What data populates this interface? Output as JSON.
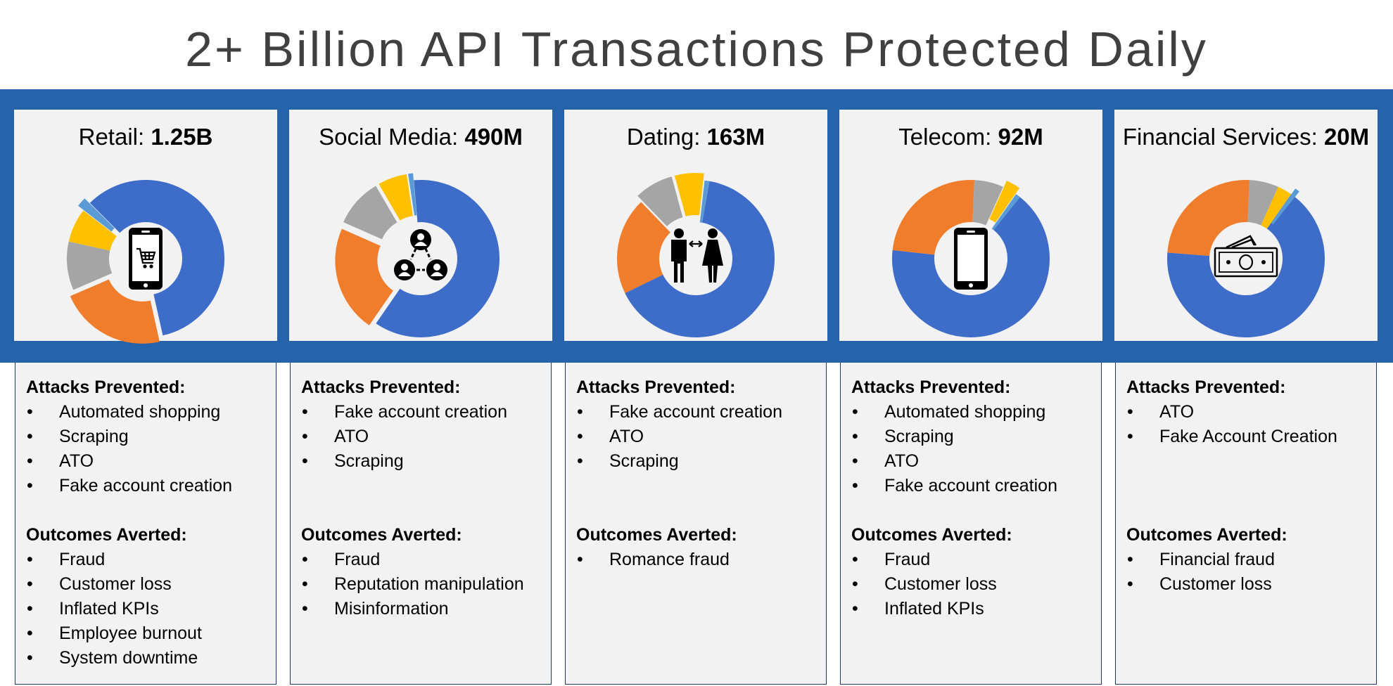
{
  "title": "2+ Billion API Transactions Protected Daily",
  "colors": {
    "band": "#2563ab",
    "segments": [
      "#3d6cc9",
      "#f07d2c",
      "#a5a5a5",
      "#ffc000",
      "#5b9bd5"
    ]
  },
  "labels": {
    "attacks_title": "Attacks Prevented:",
    "outcomes_title": "Outcomes Averted:"
  },
  "chart_data": [
    {
      "type": "pie",
      "sector": "Retail",
      "total": "1.25B",
      "icon": "shopping-cart-phone-icon",
      "slices": [
        0.59,
        0.22,
        0.1,
        0.07,
        0.02
      ],
      "exploded": [
        0,
        1,
        0,
        0,
        1
      ],
      "attacks": [
        "Automated shopping",
        "Scraping",
        "ATO",
        "Fake account creation"
      ],
      "outcomes": [
        "Fraud",
        "Customer loss",
        "Inflated KPIs",
        "Employee burnout",
        "System downtime"
      ]
    },
    {
      "type": "pie",
      "sector": "Social Media",
      "total": "490M",
      "icon": "social-network-icon",
      "slices": [
        0.61,
        0.22,
        0.1,
        0.06,
        0.01
      ],
      "exploded": [
        0,
        1,
        1,
        1,
        1
      ],
      "attacks": [
        "Fake account creation",
        "ATO",
        "Scraping"
      ],
      "outcomes": [
        "Fraud",
        "Reputation manipulation",
        "Misinformation"
      ]
    },
    {
      "type": "pie",
      "sector": "Dating",
      "total": "163M",
      "icon": "couple-icon",
      "slices": [
        0.65,
        0.2,
        0.08,
        0.06,
        0.01
      ],
      "exploded": [
        0,
        0,
        1,
        1,
        0
      ],
      "attacks": [
        "Fake account creation",
        "ATO",
        "Scraping"
      ],
      "outcomes": [
        "Romance fraud"
      ]
    },
    {
      "type": "pie",
      "sector": "Telecom",
      "total": "92M",
      "icon": "mobile-phone-icon",
      "slices": [
        0.67,
        0.24,
        0.06,
        0.03,
        0.01
      ],
      "exploded": [
        0,
        0,
        0,
        1,
        0
      ],
      "attacks": [
        "Automated shopping",
        "Scraping",
        "ATO",
        "Fake account creation"
      ],
      "outcomes": [
        "Fraud",
        "Customer loss",
        "Inflated KPIs"
      ]
    },
    {
      "type": "pie",
      "sector": "Financial Services",
      "total": "20M",
      "icon": "cash-money-icon",
      "slices": [
        0.665,
        0.245,
        0.06,
        0.03,
        0.01
      ],
      "exploded": [
        0,
        0,
        0,
        0,
        1
      ],
      "attacks": [
        "ATO",
        "Fake Account Creation"
      ],
      "outcomes": [
        "Financial fraud",
        "Customer loss"
      ]
    }
  ]
}
